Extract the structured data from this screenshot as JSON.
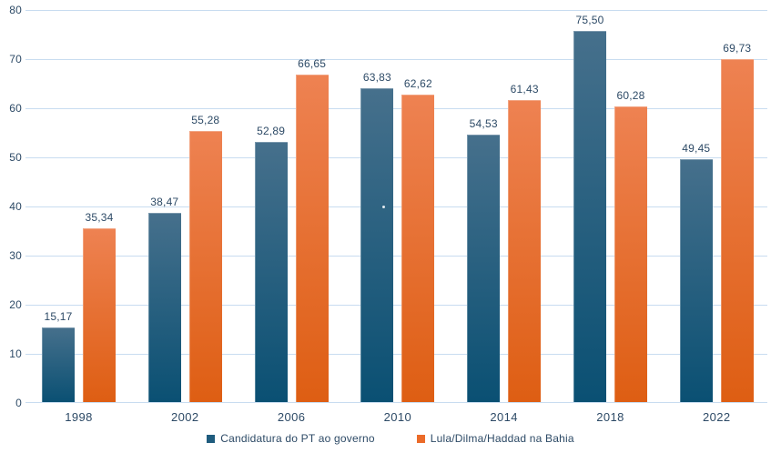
{
  "chart_data": {
    "type": "bar",
    "title": "",
    "xlabel": "",
    "ylabel": "",
    "categories": [
      "1998",
      "2002",
      "2006",
      "2010",
      "2014",
      "2018",
      "2022"
    ],
    "series": [
      {
        "name": "Candidatura do PT ao governo",
        "values": [
          15.17,
          38.47,
          52.89,
          63.83,
          54.53,
          75.5,
          49.45
        ],
        "labels": [
          "15,17",
          "38,47",
          "52,89",
          "63,83",
          "54,53",
          "75,50",
          "49,45"
        ]
      },
      {
        "name": "Lula/Dilma/Haddad na Bahia",
        "values": [
          35.34,
          55.28,
          66.65,
          62.62,
          61.43,
          60.28,
          69.73
        ],
        "labels": [
          "35,34",
          "55,28",
          "66,65",
          "62,62",
          "61,43",
          "60,28",
          "69,73"
        ]
      }
    ],
    "ylim": [
      0,
      80
    ],
    "ytick_step": 10,
    "yticks": [
      "0",
      "10",
      "20",
      "30",
      "40",
      "50",
      "60",
      "70",
      "80"
    ],
    "grid": "horizontal",
    "legend_position": "bottom",
    "decimal_separator": ",",
    "colors": {
      "series1_gradient_top": "#46708C",
      "series1_gradient_bottom": "#0A5073",
      "series2_gradient_top": "#EE8252",
      "series2_gradient_bottom": "#DE5E13",
      "series1_legend": "#1F5C7E",
      "series2_legend": "#EB6B29",
      "gridline": "#C8DCF0",
      "text": "#2D4A66"
    }
  }
}
